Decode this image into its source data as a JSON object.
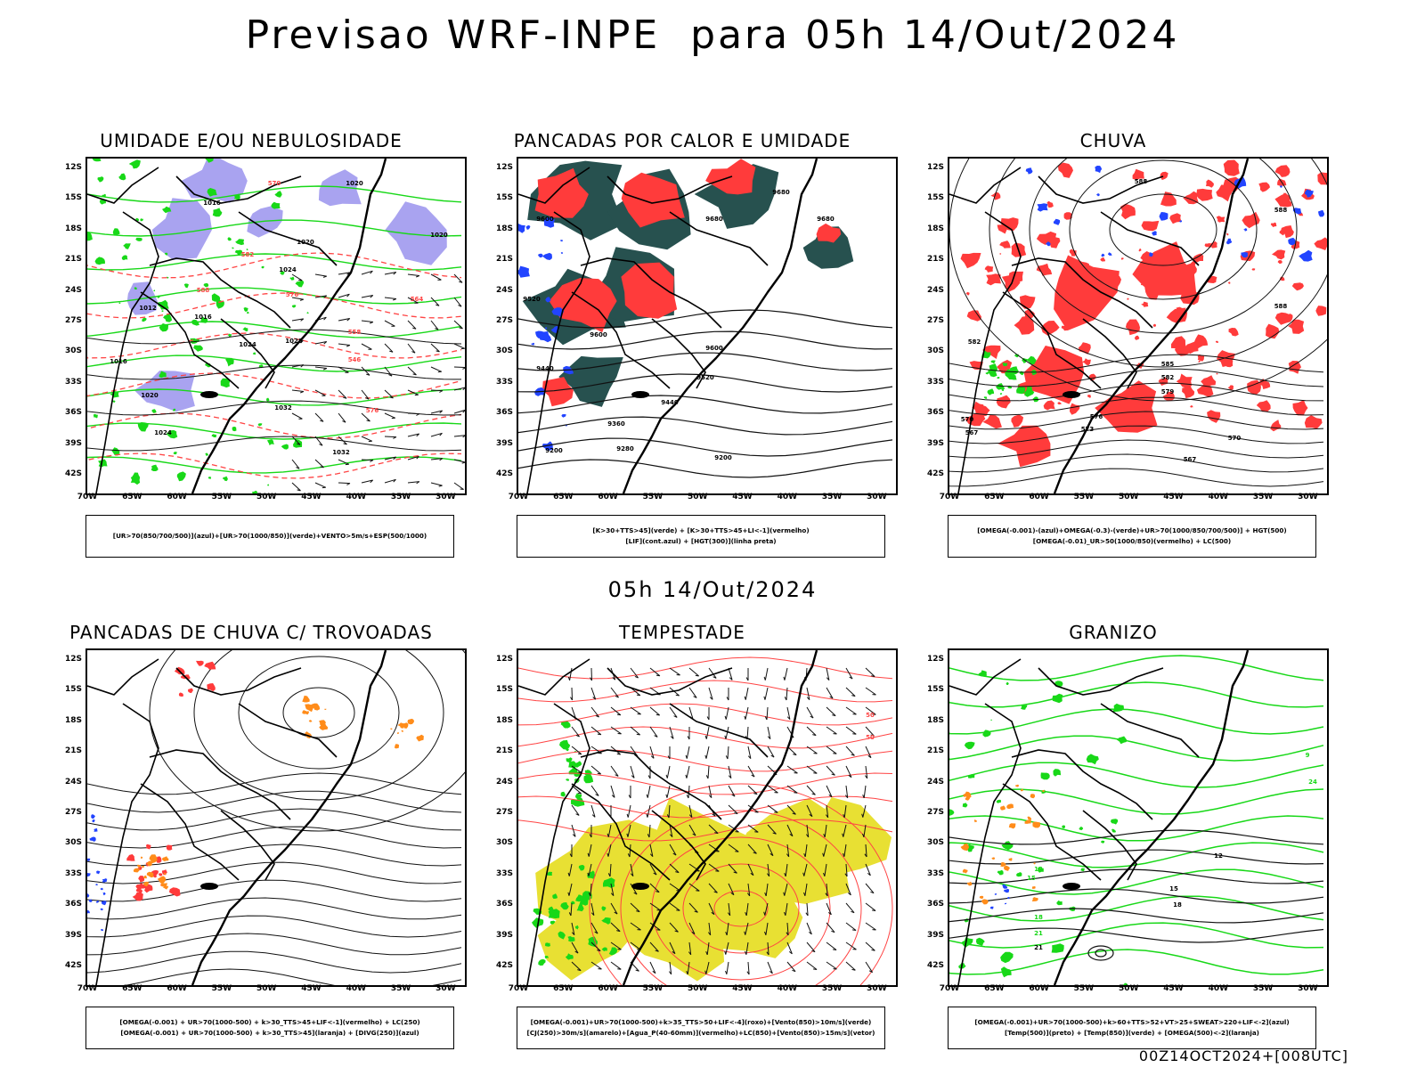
{
  "title": "Previsao WRF-INPE  para 05h 14/Out/2024",
  "mid_title": "05h 14/Out/2024",
  "footer": "00Z14OCT2024+[008UTC]",
  "lat_labels": [
    "12S",
    "15S",
    "18S",
    "21S",
    "24S",
    "27S",
    "30S",
    "33S",
    "36S",
    "39S",
    "42S"
  ],
  "lon_labels": [
    "70W",
    "65W",
    "60W",
    "55W",
    "50W",
    "45W",
    "40W",
    "35W",
    "30W"
  ],
  "colors": {
    "green": "#18d818",
    "red_contour": "#ff4444",
    "red_fill": "#ff3b3b",
    "dark_teal": "#27514f",
    "blue": "#2244ff",
    "lavender": "#a9a3f0",
    "yellow": "#e8e033",
    "orange": "#ff8c1a",
    "purple": "#8833cc"
  },
  "panels": [
    {
      "title": "UMIDADE E/OU NEBULOSIDADE",
      "legend": [
        "[UR>70(850/700/500)](azul)+[UR>70(1000/850)](verde)+VENTO>5m/s+ESP(500/1000)"
      ],
      "contour_labels": [
        "1020",
        "1016",
        "1020",
        "1024",
        "1012",
        "1016",
        "1020",
        "1024",
        "1032",
        "1032",
        "1024",
        "1028",
        "1016",
        "1020",
        "564",
        "558",
        "546",
        "576",
        "570",
        "582",
        "588",
        "576"
      ]
    },
    {
      "title": "PANCADAS POR CALOR E UMIDADE",
      "legend": [
        "[K>30+TTS>45](verde) + [K>30+TTS>45+LI<-1](vermelho)",
        "[LIF](cont.azul) + [HGT(300)](linha preta)"
      ],
      "contour_labels": [
        "9680",
        "9680",
        "9680",
        "9600",
        "9600",
        "9520",
        "9600",
        "9520",
        "9440",
        "9440",
        "9360",
        "9280",
        "9200",
        "9200"
      ]
    },
    {
      "title": "CHUVA",
      "legend": [
        "[OMEGA(-0.001)-(azul)+OMEGA(-0.3)-(verde)+UR>70(1000/850/700/500)] + HGT(500)",
        "[OMEGA(-0.01)_UR>50(1000/850)(vermelho) + LC(500)"
      ],
      "contour_labels": [
        "588",
        "588",
        "588",
        "582",
        "585",
        "582",
        "579",
        "576",
        "573",
        "570",
        "567",
        "570",
        "567"
      ]
    },
    {
      "title": "PANCADAS DE CHUVA C/ TROVOADAS",
      "legend": [
        "[OMEGA(-0.001) + UR>70(1000-500) + k>30_TTS>45+LIF<-1](vermelho) + LC(250)",
        "[OMEGA(-0.001) + UR>70(1000-500) + k>30_TTS>45](laranja) + [DIVG(250)](azul)"
      ],
      "contour_labels": []
    },
    {
      "title": "TEMPESTADE",
      "legend": [
        "[OMEGA(-0.001)+UR>70(1000-500)+k>35_TTS>50+LIF<-4](roxo)+[Vento(850)>10m/s](verde)",
        "[CJ(250)>30m/s](amarelo)+[Agua_P(40-60mm)](vermelho)+LC(850)+[Vento(850)>15m/s](vetor)"
      ],
      "contour_labels": [
        "50",
        "50"
      ]
    },
    {
      "title": "GRANIZO",
      "legend": [
        "[OMEGA(-0.001)+UR>70(1000-500)+k>60+TTS>52+VT>25+SWEAT>220+LIF<-2](azul)",
        "[Temp(500)](preto) + [Temp(850)](verde) + [OMEGA(500)<-2](laranja)"
      ],
      "contour_labels": [
        "12",
        "15",
        "18",
        "21",
        "9",
        "12",
        "15",
        "18",
        "21",
        "24"
      ]
    }
  ]
}
